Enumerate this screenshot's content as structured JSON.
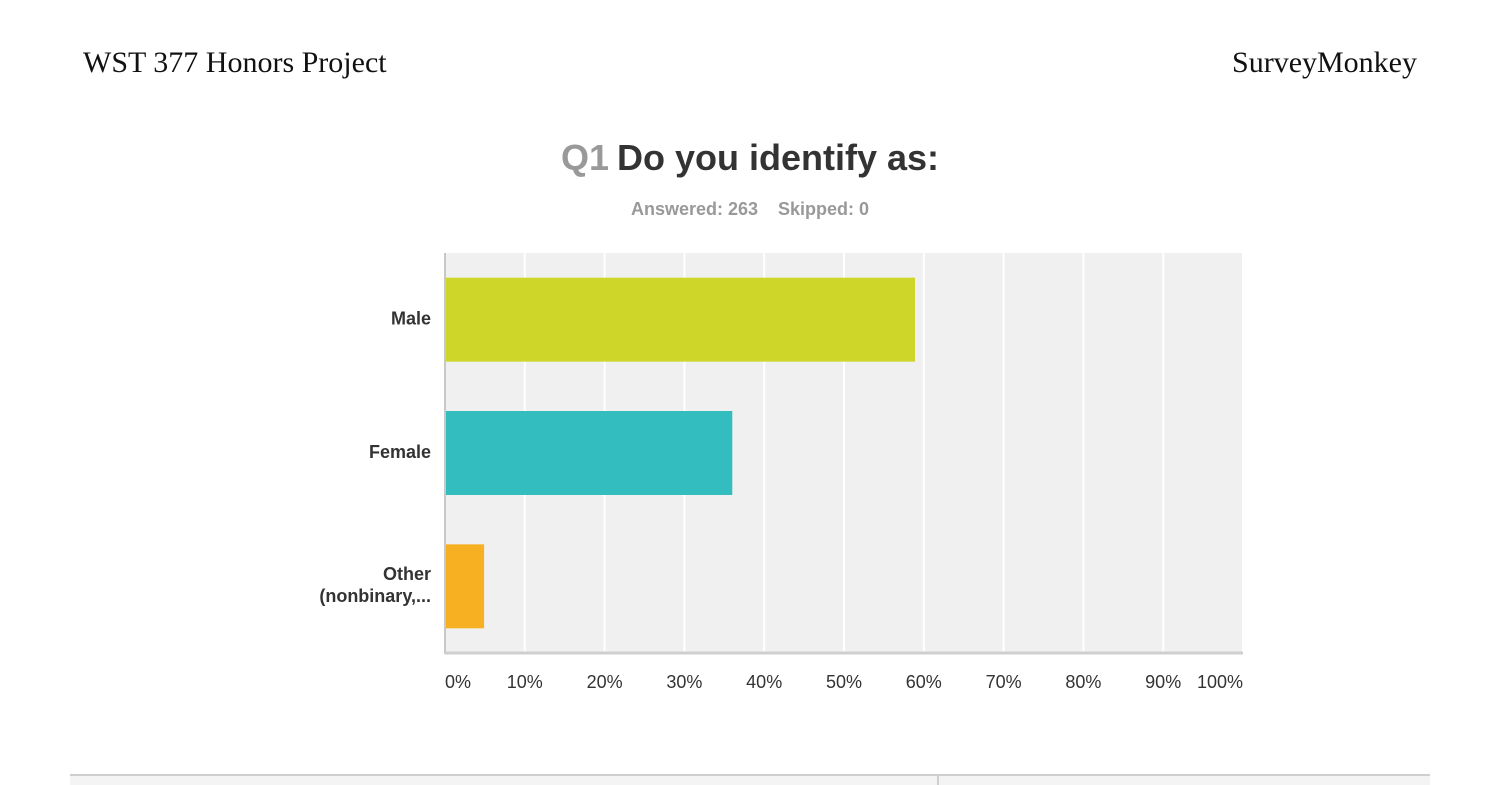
{
  "header": {
    "left": "WST 377 Honors Project",
    "right": "SurveyMonkey"
  },
  "question": {
    "number": "Q1",
    "text": "Do you identify as:",
    "answered": "Answered: 263",
    "skipped": "Skipped: 0"
  },
  "chart_data": {
    "type": "bar",
    "orientation": "horizontal",
    "categories": [
      "Male",
      "Female",
      "Other (nonbinary,..."
    ],
    "category_lines": [
      [
        "Male"
      ],
      [
        "Female"
      ],
      [
        "Other",
        "(nonbinary,..."
      ]
    ],
    "values": [
      58.9,
      36.0,
      4.9
    ],
    "colors": [
      "#cfd62a",
      "#33bdbf",
      "#f7b022"
    ],
    "xlim": [
      0,
      100
    ],
    "x_ticks": [
      0,
      10,
      20,
      30,
      40,
      50,
      60,
      70,
      80,
      90,
      100
    ],
    "x_tick_labels": [
      "0%",
      "10%",
      "20%",
      "30%",
      "40%",
      "50%",
      "60%",
      "70%",
      "80%",
      "90%",
      "100%"
    ],
    "grid": true,
    "plot_background": "#f0f0f0",
    "gridline_color": "#ffffff"
  }
}
